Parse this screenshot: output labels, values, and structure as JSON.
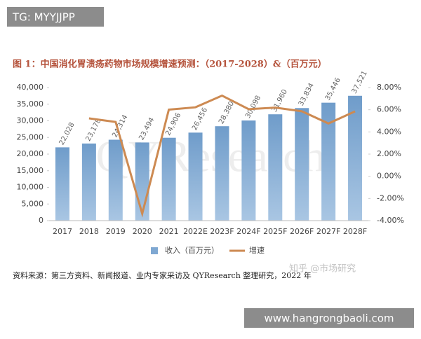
{
  "overlays": [
    "TG: MYYJJPP",
    "www.hangrongbaoli.com"
  ],
  "source": "资料来源：第三方资料、新闻报道、业内专家采访及 QYResearch 整理研究，2022 年",
  "zhihu_mark": "知乎 @市场研究",
  "chart_data": {
    "type": "bar",
    "title": "图 1：中国消化胃溃疡药物市场规模增速预测：（2017-2028）&（百万元）",
    "watermark": "QYResearch",
    "categories": [
      "2017",
      "2018",
      "2019",
      "2020",
      "2021",
      "2022E",
      "2023F",
      "2024F",
      "2025F",
      "2026F",
      "2027F",
      "2028F"
    ],
    "series": [
      {
        "name": "收入（百万元）",
        "color": "#7fa8d2",
        "type": "bar",
        "values": [
          22028,
          23178,
          24314,
          23494,
          24906,
          26456,
          28380,
          30098,
          31960,
          33834,
          35446,
          37521
        ],
        "value_labels": [
          "22,028",
          "23,178",
          "24,314",
          "23,494",
          "24,906",
          "26,456",
          "28,380",
          "30,098",
          "31,960",
          "33,834",
          "35,446",
          "37,521"
        ]
      },
      {
        "name": "增速",
        "color": "#cd8a52",
        "type": "line",
        "axis": "y2",
        "values": [
          null,
          5.22,
          4.9,
          -3.37,
          6.01,
          6.22,
          7.27,
          6.05,
          6.19,
          5.86,
          4.76,
          5.85
        ]
      }
    ],
    "ylim": [
      0,
      40000
    ],
    "yticks": [
      0,
      {
        "value": 5000,
        "label": "5,000"
      },
      {
        "value": 10000,
        "label": "10,000"
      },
      {
        "value": 15000,
        "label": "15,000"
      },
      {
        "value": 20000,
        "label": "20,000"
      },
      {
        "value": 25000,
        "label": "25,000"
      },
      {
        "value": 30000,
        "label": "30,000"
      },
      {
        "value": 35000,
        "label": "35,000"
      },
      {
        "value": 40000,
        "label": "40,000"
      }
    ],
    "y2lim": [
      -4,
      8
    ],
    "y2ticks": [
      {
        "value": -4,
        "label": "-4.00%"
      },
      {
        "value": -2,
        "label": "-2.00%"
      },
      {
        "value": 0,
        "label": "0.00%"
      },
      {
        "value": 2,
        "label": "2.00%"
      },
      {
        "value": 4,
        "label": "4.00%"
      },
      {
        "value": 6,
        "label": "6.00%"
      },
      {
        "value": 8,
        "label": "8.00%"
      }
    ],
    "grid": false,
    "legend": "bottom"
  }
}
